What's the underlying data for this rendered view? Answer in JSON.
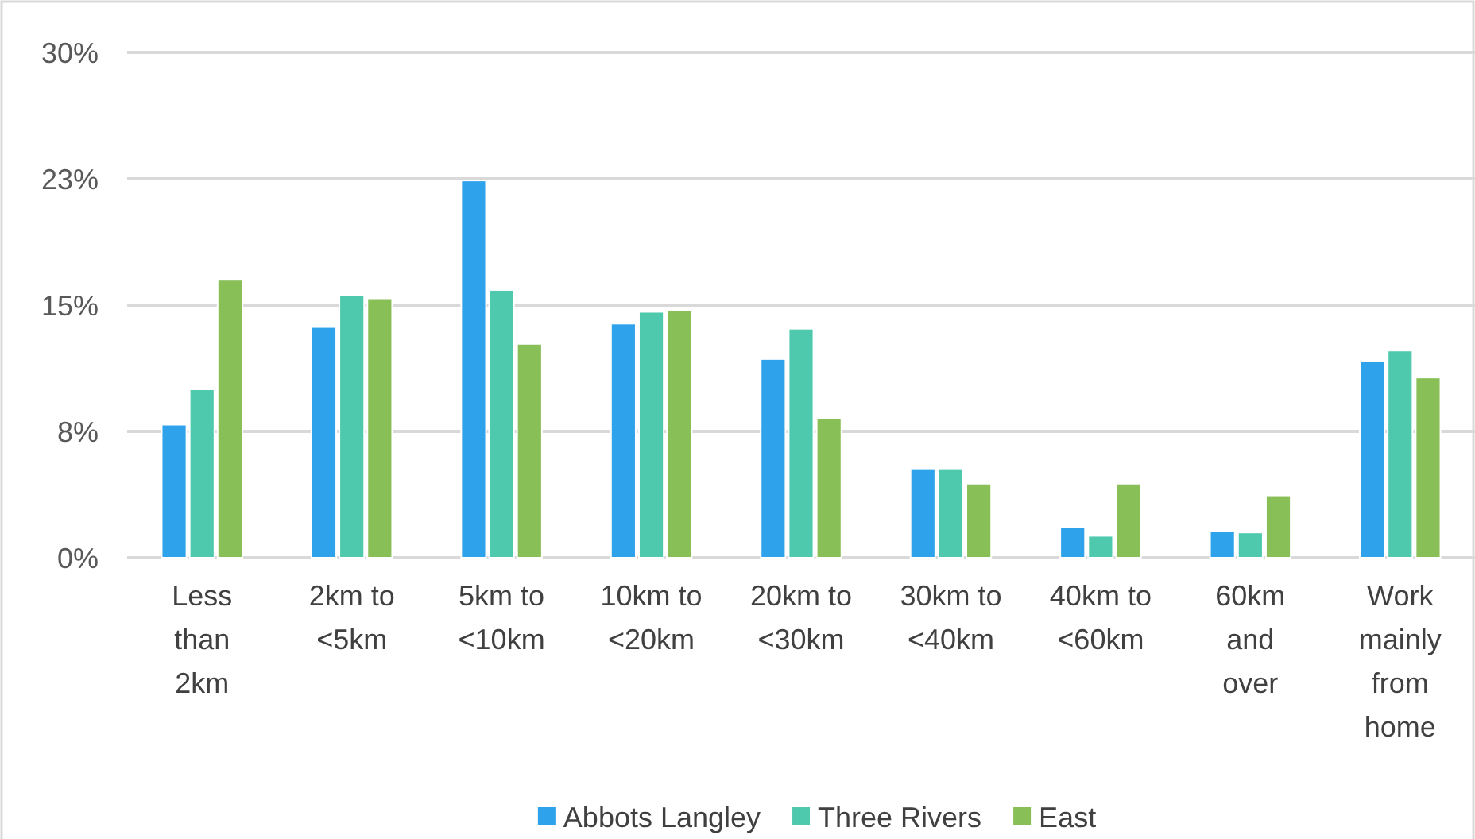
{
  "chart_data": {
    "type": "bar",
    "categories": [
      "Less than 2km",
      "2km to <5km",
      "5km to <10km",
      "10km to <20km",
      "20km to <30km",
      "30km to <40km",
      "40km to <60km",
      "60km and over",
      "Work mainly from home"
    ],
    "series": [
      {
        "name": "Abbots Langley",
        "color": "#2fa2ec",
        "values": [
          7.9,
          13.7,
          22.4,
          13.9,
          11.8,
          5.3,
          1.8,
          1.6,
          11.7
        ]
      },
      {
        "name": "Three Rivers",
        "color": "#4ec9ad",
        "values": [
          10.0,
          15.6,
          15.9,
          14.6,
          13.6,
          5.3,
          1.3,
          1.5,
          12.3
        ]
      },
      {
        "name": "East",
        "color": "#88bf57",
        "values": [
          16.5,
          15.4,
          12.7,
          14.7,
          8.3,
          4.4,
          4.4,
          3.7,
          10.7
        ]
      }
    ],
    "ylim": [
      0,
      30
    ],
    "yticks": [
      {
        "value": 0,
        "label": "0%"
      },
      {
        "value": 7.5,
        "label": "8%"
      },
      {
        "value": 15,
        "label": "15%"
      },
      {
        "value": 22.5,
        "label": "23%"
      },
      {
        "value": 30,
        "label": "30%"
      }
    ],
    "grid": "y",
    "legend": "bottom"
  }
}
